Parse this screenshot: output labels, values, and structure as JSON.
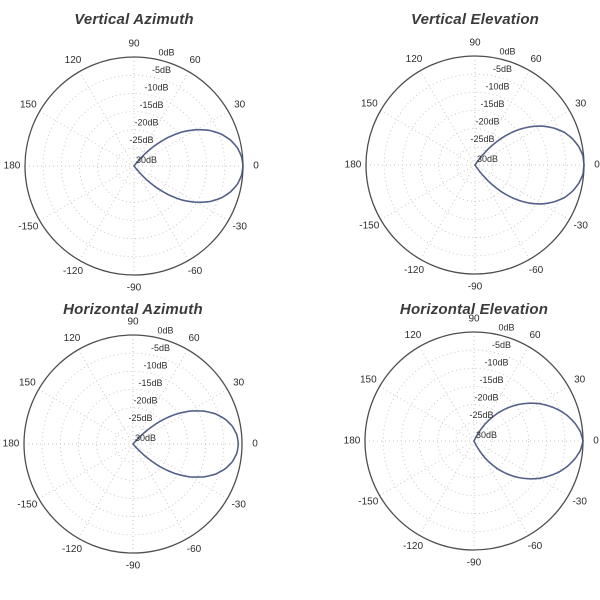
{
  "styles": {
    "background": "#ffffff",
    "curve_color": "#47527f",
    "outer_ring_color": "#4e4e4e",
    "grid_dot_color": "#c9c9c9",
    "spoke_dot_color": "#c4c4c4",
    "title_color": "#3b3b3b",
    "tick_label_color": "#2d2d2d"
  },
  "chart_data": [
    {
      "type": "line",
      "projection": "polar",
      "title": "Vertical Azimuth",
      "units": "dB",
      "radial_range_db": [
        0,
        -30
      ],
      "radial_tick_labels": [
        "0dB",
        "-5dB",
        "-10dB",
        "-15dB",
        "-20dB",
        "-25dB",
        "30dB"
      ],
      "angular_tick_labels": [
        "0",
        "30",
        "60",
        "90",
        "120",
        "150",
        "180",
        "-150",
        "-120",
        "-90",
        "-60",
        "-30"
      ],
      "grid": "dotted",
      "series": [
        {
          "name": "gain_pattern",
          "color": "#47527f",
          "points_deg_db": [
            [
              -52,
              -30
            ],
            [
              -50,
              -27.7
            ],
            [
              -45,
              -22.5
            ],
            [
              -40,
              -17.8
            ],
            [
              -35,
              -13.6
            ],
            [
              -30,
              -10
            ],
            [
              -25,
              -6.9
            ],
            [
              -20,
              -4.4
            ],
            [
              -15,
              -2.5
            ],
            [
              -10,
              -1.1
            ],
            [
              -5,
              -0.3
            ],
            [
              0,
              0
            ],
            [
              5,
              -0.3
            ],
            [
              10,
              -1.1
            ],
            [
              15,
              -2.5
            ],
            [
              20,
              -4.4
            ],
            [
              25,
              -6.9
            ],
            [
              30,
              -10
            ],
            [
              35,
              -13.6
            ],
            [
              40,
              -17.8
            ],
            [
              45,
              -22.5
            ],
            [
              50,
              -27.7
            ],
            [
              52,
              -30
            ]
          ]
        }
      ]
    },
    {
      "type": "line",
      "projection": "polar",
      "title": "Vertical Elevation",
      "units": "dB",
      "radial_range_db": [
        0,
        -30
      ],
      "radial_tick_labels": [
        "0dB",
        "-5dB",
        "-10dB",
        "-15dB",
        "-20dB",
        "-25dB",
        "30dB"
      ],
      "angular_tick_labels": [
        "0",
        "30",
        "60",
        "90",
        "120",
        "150",
        "180",
        "-150",
        "-120",
        "-90",
        "-60",
        "-30"
      ],
      "grid": "dotted",
      "series": [
        {
          "name": "gain_pattern",
          "color": "#47527f",
          "points_deg_db": [
            [
              -56,
              -30
            ],
            [
              -55,
              -28.9
            ],
            [
              -50,
              -23.9
            ],
            [
              -45,
              -19.4
            ],
            [
              -40,
              -15.3
            ],
            [
              -35,
              -11.7
            ],
            [
              -30,
              -8.6
            ],
            [
              -25,
              -6
            ],
            [
              -20,
              -3.8
            ],
            [
              -15,
              -2.2
            ],
            [
              -10,
              -1
            ],
            [
              -5,
              -0.2
            ],
            [
              0,
              0
            ],
            [
              5,
              -0.2
            ],
            [
              10,
              -1
            ],
            [
              15,
              -2.2
            ],
            [
              20,
              -3.8
            ],
            [
              25,
              -6
            ],
            [
              30,
              -8.6
            ],
            [
              35,
              -11.7
            ],
            [
              40,
              -15.3
            ],
            [
              45,
              -19.4
            ],
            [
              50,
              -23.9
            ],
            [
              55,
              -28.9
            ],
            [
              56,
              -30
            ]
          ]
        }
      ]
    },
    {
      "type": "line",
      "projection": "polar",
      "title": "Horizontal Azimuth",
      "units": "dB",
      "radial_range_db": [
        0,
        -30
      ],
      "radial_tick_labels": [
        "0dB",
        "-5dB",
        "-10dB",
        "-15dB",
        "-20dB",
        "-25dB",
        "30dB"
      ],
      "angular_tick_labels": [
        "0",
        "30",
        "60",
        "90",
        "120",
        "150",
        "180",
        "-150",
        "-120",
        "-90",
        "-60",
        "-30"
      ],
      "grid": "dotted",
      "series": [
        {
          "name": "gain_pattern",
          "color": "#47527f",
          "points_deg_db": [
            [
              -49,
              -30
            ],
            [
              -45,
              -25.5
            ],
            [
              -40,
              -20.3
            ],
            [
              -35,
              -15.8
            ],
            [
              -30,
              -11.9
            ],
            [
              -25,
              -8.6
            ],
            [
              -20,
              -5.8
            ],
            [
              -15,
              -3.7
            ],
            [
              -10,
              -2.2
            ],
            [
              -5,
              -1.3
            ],
            [
              0,
              -1
            ],
            [
              5,
              -1.3
            ],
            [
              10,
              -2.2
            ],
            [
              15,
              -3.7
            ],
            [
              20,
              -5.8
            ],
            [
              25,
              -8.6
            ],
            [
              30,
              -11.9
            ],
            [
              35,
              -15.8
            ],
            [
              40,
              -20.3
            ],
            [
              45,
              -25.5
            ],
            [
              49,
              -30
            ]
          ]
        }
      ]
    },
    {
      "type": "line",
      "projection": "polar",
      "title": "Horizontal Elevation",
      "units": "dB",
      "radial_range_db": [
        0,
        -30
      ],
      "radial_tick_labels": [
        "0dB",
        "-5dB",
        "-10dB",
        "-15dB",
        "-20dB",
        "-25dB",
        "30dB"
      ],
      "angular_tick_labels": [
        "0",
        "30",
        "60",
        "90",
        "120",
        "150",
        "180",
        "-150",
        "-120",
        "-90",
        "-60",
        "-30"
      ],
      "grid": "dotted",
      "series": [
        {
          "name": "gain_pattern",
          "color": "#47527f",
          "points_deg_db": [
            [
              -65,
              -30
            ],
            [
              -60,
              -26.6
            ],
            [
              -55,
              -23.3
            ],
            [
              -50,
              -20.2
            ],
            [
              -45,
              -17.3
            ],
            [
              -40,
              -14.5
            ],
            [
              -35,
              -11.9
            ],
            [
              -30,
              -9.4
            ],
            [
              -25,
              -7.2
            ],
            [
              -20,
              -5.1
            ],
            [
              -15,
              -3.3
            ],
            [
              -10,
              -1.8
            ],
            [
              -5,
              -0.6
            ],
            [
              0,
              0
            ],
            [
              5,
              -0.6
            ],
            [
              10,
              -1.8
            ],
            [
              15,
              -3.3
            ],
            [
              20,
              -5.1
            ],
            [
              25,
              -7.2
            ],
            [
              30,
              -9.4
            ],
            [
              35,
              -11.9
            ],
            [
              40,
              -14.5
            ],
            [
              45,
              -17.3
            ],
            [
              50,
              -20.2
            ],
            [
              55,
              -23.3
            ],
            [
              60,
              -26.6
            ],
            [
              65,
              -30
            ]
          ]
        }
      ]
    }
  ]
}
